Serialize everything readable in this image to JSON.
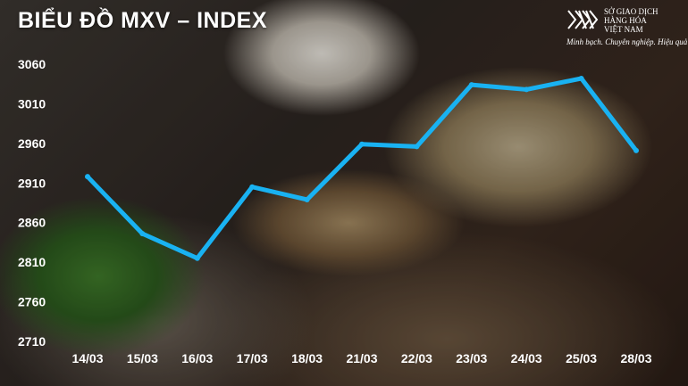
{
  "title": "BIỂU ĐỒ MXV – INDEX",
  "logo": {
    "icon": "mxv-logo-icon",
    "name": "SỞ GIAO DỊCH\nHÀNG HÓA\nVIỆT NAM",
    "slogan": "Minh bạch. Chuyên nghiệp. Hiệu quả"
  },
  "chart_data": {
    "type": "line",
    "title": "BIỂU ĐỒ MXV – INDEX",
    "categories": [
      "14/03",
      "15/03",
      "16/03",
      "17/03",
      "18/03",
      "21/03",
      "22/03",
      "23/03",
      "24/03",
      "25/03",
      "28/03"
    ],
    "series": [
      {
        "values": [
          2918,
          2846,
          2815,
          2905,
          2889,
          2959,
          2956,
          3034,
          3028,
          3042,
          2951
        ]
      }
    ],
    "yticks": [
      3060,
      3010,
      2960,
      2910,
      2860,
      2810,
      2760,
      2710
    ],
    "ylim": [
      2710,
      3060
    ],
    "grid": false,
    "legend": "none",
    "line_color": "#19b2f2"
  }
}
